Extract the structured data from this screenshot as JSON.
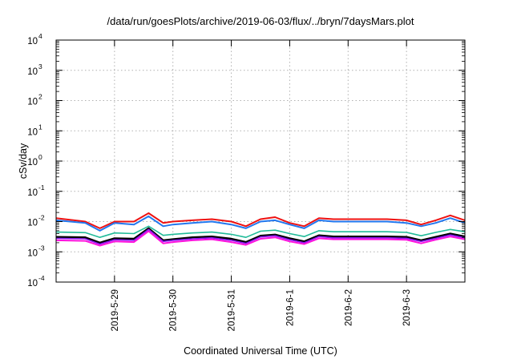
{
  "chart_data": {
    "type": "line",
    "title": "/data/run/goesPlots/archive/2019-06-03/flux/../bryn/7daysMars.plot",
    "xlabel": "Coordinated Universal Time (UTC)",
    "ylabel": "cSv/day",
    "yscale": "log",
    "ylim": [
      0.0001,
      10000
    ],
    "y_ticks": [
      {
        "base": "10",
        "exp": "-4",
        "value": 0.0001
      },
      {
        "base": "10",
        "exp": "-3",
        "value": 0.001
      },
      {
        "base": "10",
        "exp": "-2",
        "value": 0.01
      },
      {
        "base": "10",
        "exp": "-1",
        "value": 0.1
      },
      {
        "base": "10",
        "exp": "0",
        "value": 1
      },
      {
        "base": "10",
        "exp": "1",
        "value": 10
      },
      {
        "base": "10",
        "exp": "2",
        "value": 100
      },
      {
        "base": "10",
        "exp": "3",
        "value": 1000
      },
      {
        "base": "10",
        "exp": "4",
        "value": 10000
      }
    ],
    "xlim": [
      "2019-05-28 00:00",
      "2019-06-04 00:00"
    ],
    "x_ticks": [
      "2019-5-29",
      "2019-5-30",
      "2019-5-31",
      "2019-6-1",
      "2019-6-2",
      "2019-6-3"
    ],
    "x_tick_dates": [
      "2019-05-29",
      "2019-05-30",
      "2019-05-31",
      "2019-06-01",
      "2019-06-02",
      "2019-06-03"
    ],
    "grid": true,
    "x": [
      "2019-05-28 00:00",
      "2019-05-28 12:00",
      "2019-05-28 18:00",
      "2019-05-29 00:00",
      "2019-05-29 08:00",
      "2019-05-29 14:00",
      "2019-05-29 20:00",
      "2019-05-30 00:00",
      "2019-05-30 08:00",
      "2019-05-30 16:00",
      "2019-05-31 00:00",
      "2019-05-31 06:00",
      "2019-05-31 12:00",
      "2019-05-31 18:00",
      "2019-06-01 00:00",
      "2019-06-01 06:00",
      "2019-06-01 12:00",
      "2019-06-01 18:00",
      "2019-06-02 00:00",
      "2019-06-02 08:00",
      "2019-06-02 16:00",
      "2019-06-03 00:00",
      "2019-06-03 06:00",
      "2019-06-03 12:00",
      "2019-06-03 18:00",
      "2019-06-04 00:00"
    ],
    "series": [
      {
        "color": "#ee1111",
        "width": 2.0,
        "values": [
          0.013,
          0.01,
          0.006,
          0.01,
          0.01,
          0.019,
          0.009,
          0.01,
          0.011,
          0.012,
          0.01,
          0.007,
          0.012,
          0.014,
          0.009,
          0.007,
          0.013,
          0.012,
          0.012,
          0.012,
          0.012,
          0.011,
          0.008,
          0.011,
          0.016,
          0.011
        ]
      },
      {
        "color": "#2277ee",
        "width": 2.0,
        "values": [
          0.011,
          0.009,
          0.005,
          0.009,
          0.008,
          0.015,
          0.007,
          0.008,
          0.009,
          0.01,
          0.008,
          0.006,
          0.01,
          0.011,
          0.008,
          0.006,
          0.011,
          0.01,
          0.01,
          0.01,
          0.01,
          0.009,
          0.007,
          0.009,
          0.013,
          0.009
        ]
      },
      {
        "color": "#22bb99",
        "width": 1.6,
        "values": [
          0.0045,
          0.0043,
          0.003,
          0.0042,
          0.004,
          0.007,
          0.0035,
          0.0038,
          0.0042,
          0.0045,
          0.0038,
          0.003,
          0.0048,
          0.0052,
          0.004,
          0.0032,
          0.005,
          0.0046,
          0.0046,
          0.0046,
          0.0046,
          0.0044,
          0.0034,
          0.0044,
          0.0055,
          0.0046
        ]
      },
      {
        "color": "#000000",
        "width": 2.4,
        "values": [
          0.0031,
          0.003,
          0.002,
          0.0028,
          0.0027,
          0.006,
          0.0024,
          0.0026,
          0.003,
          0.0032,
          0.0027,
          0.0021,
          0.0034,
          0.0037,
          0.0028,
          0.0022,
          0.0035,
          0.0032,
          0.0032,
          0.0032,
          0.0032,
          0.0031,
          0.0024,
          0.0031,
          0.004,
          0.0032
        ]
      },
      {
        "color": "#8811ee",
        "width": 1.6,
        "values": [
          0.0028,
          0.0027,
          0.0018,
          0.0025,
          0.0024,
          0.0055,
          0.0022,
          0.0024,
          0.0027,
          0.0029,
          0.0024,
          0.0019,
          0.0031,
          0.0034,
          0.0025,
          0.002,
          0.0032,
          0.0029,
          0.0029,
          0.0029,
          0.0029,
          0.0028,
          0.0022,
          0.0028,
          0.0036,
          0.0029
        ]
      },
      {
        "color": "#ff11dd",
        "width": 2.0,
        "values": [
          0.0024,
          0.0023,
          0.0016,
          0.0022,
          0.0021,
          0.0048,
          0.0019,
          0.0021,
          0.0024,
          0.0026,
          0.0021,
          0.0017,
          0.0027,
          0.003,
          0.0022,
          0.0018,
          0.0028,
          0.0026,
          0.0026,
          0.0026,
          0.0026,
          0.0025,
          0.0019,
          0.0025,
          0.0032,
          0.0026
        ]
      }
    ]
  }
}
